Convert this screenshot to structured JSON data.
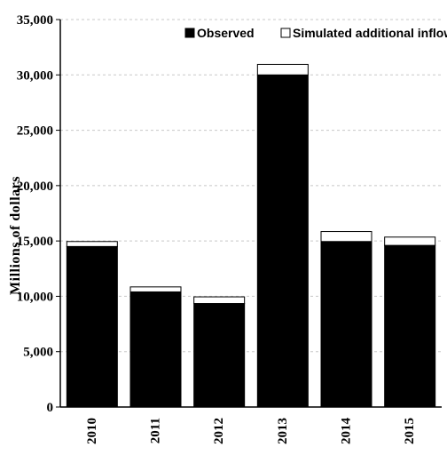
{
  "chart_data": {
    "type": "bar",
    "stacked": true,
    "categories": [
      "2010",
      "2011",
      "2012",
      "2013",
      "2014",
      "2015"
    ],
    "series": [
      {
        "name": "Observed",
        "color": "#000000",
        "values": [
          14500,
          10400,
          9350,
          30000,
          14950,
          14600
        ]
      },
      {
        "name": "Simulated additional inflows",
        "color": "#ffffff",
        "values": [
          450,
          450,
          600,
          950,
          900,
          750
        ]
      }
    ],
    "ylabel": "Millions of dollars",
    "xlabel": "",
    "ylim": [
      0,
      35000
    ],
    "yticks": [
      "0",
      "5,000",
      "10,000",
      "15,000",
      "20,000",
      "25,000",
      "30,000",
      "35,000"
    ],
    "grid": true,
    "legend_position": "top-right"
  }
}
